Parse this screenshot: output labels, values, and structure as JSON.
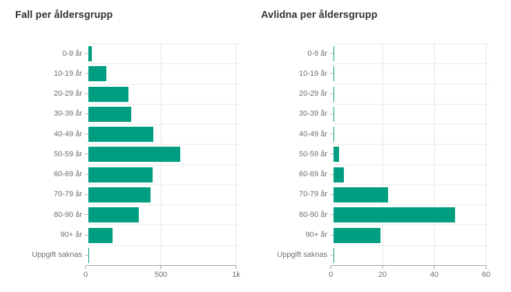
{
  "colors": {
    "bar": "#009e80",
    "grid_horizontal": "#ebebeb",
    "grid_vertical": "#e4e4e4",
    "axis_line": "#9e9e9e",
    "category_tick": "#b5b5b5",
    "label_text": "#6e6e6e",
    "title_text": "#323232",
    "background": "#ffffff"
  },
  "chart_data": [
    {
      "type": "bar",
      "orientation": "horizontal",
      "title": "Fall per åldersgrupp",
      "categories": [
        "0-9 år",
        "10-19 år",
        "20-29 år",
        "30-39 år",
        "40-49 år",
        "50-59 år",
        "60-69 år",
        "70-79 år",
        "80-90 år",
        "90+ år",
        "Uppgift saknas"
      ],
      "values": [
        25,
        120,
        265,
        285,
        430,
        610,
        425,
        415,
        335,
        160,
        5
      ],
      "xticks": [
        "0",
        "500",
        "1k"
      ],
      "xlim": [
        0,
        1000
      ],
      "grid": true,
      "legend": "none"
    },
    {
      "type": "bar",
      "orientation": "horizontal",
      "title": "Avlidna per åldersgrupp",
      "categories": [
        "0-9 år",
        "10-19 år",
        "20-29 år",
        "30-39 år",
        "40-49 år",
        "50-59 år",
        "60-69 år",
        "70-79 år",
        "80-90 år",
        "90+ år",
        "Uppgift saknas"
      ],
      "values": [
        0,
        0,
        0,
        0,
        0,
        2,
        4,
        21,
        47,
        18,
        0
      ],
      "xticks": [
        "0",
        "20",
        "40",
        "60"
      ],
      "xlim": [
        0,
        60
      ],
      "grid": true,
      "legend": "none"
    }
  ]
}
